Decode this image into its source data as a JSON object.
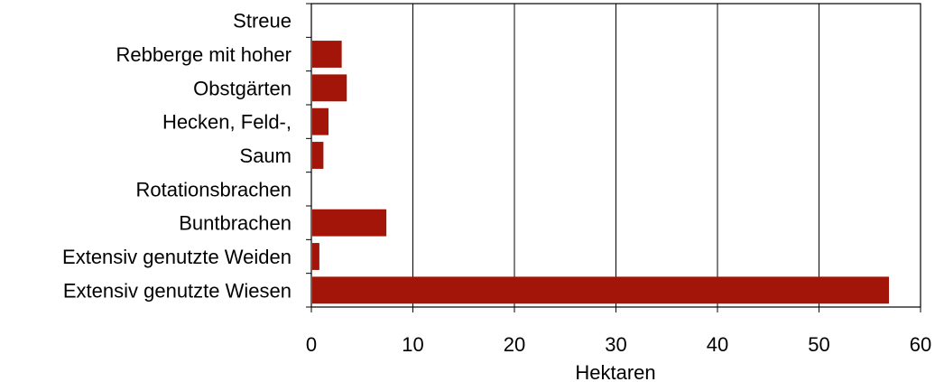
{
  "chart_data": {
    "type": "bar",
    "orientation": "horizontal",
    "categories": [
      "Streue",
      "Rebberge mit hoher",
      "Obstgärten",
      "Hecken, Feld-,",
      "Saum",
      "Rotationsbrachen",
      "Buntbrachen",
      "Extensiv genutzte Weiden",
      "Extensiv genutzte Wiesen"
    ],
    "values": [
      0,
      2.9,
      3.4,
      1.6,
      1.1,
      0,
      7.3,
      0.7,
      56.8
    ],
    "title": "",
    "xlabel": "Hektaren",
    "ylabel": "",
    "xlim": [
      0,
      60
    ],
    "xticks": [
      "0",
      "10",
      "20",
      "30",
      "40",
      "50",
      "60"
    ],
    "grid": "vertical",
    "legend": "none",
    "bar_color": "#a31508",
    "grid_color": "#000000"
  }
}
